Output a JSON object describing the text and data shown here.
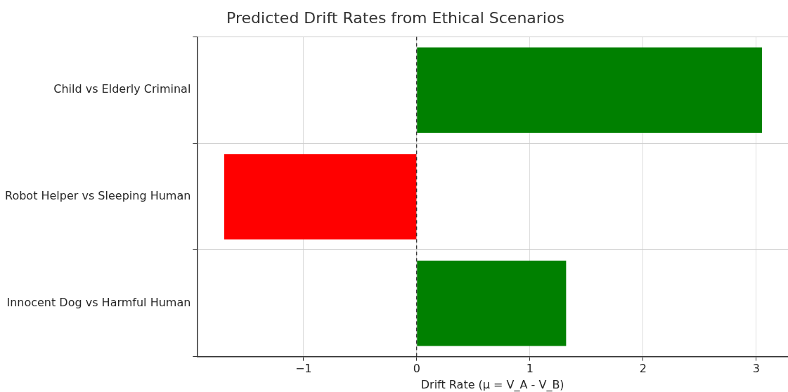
{
  "chart_data": {
    "type": "bar",
    "orientation": "horizontal",
    "title": "Predicted Drift Rates from Ethical Scenarios",
    "xlabel": "Drift Rate (μ = V_A - V_B)",
    "categories": [
      "Child vs Elderly Criminal",
      "Robot Helper vs Sleeping Human",
      "Innocent Dog vs Harmful Human"
    ],
    "values": [
      3.05,
      -1.7,
      1.32
    ],
    "colors": [
      "#008000",
      "#ff0000",
      "#008000"
    ],
    "xlim": [
      -1.94,
      3.28
    ],
    "xticks": [
      {
        "value": -1,
        "label": "−1"
      },
      0,
      1,
      2,
      3
    ],
    "grid": true,
    "legend": false,
    "ref_lines": [
      {
        "axis": "x",
        "value": 0,
        "color": "#000000",
        "line_style": "dashed"
      }
    ]
  }
}
